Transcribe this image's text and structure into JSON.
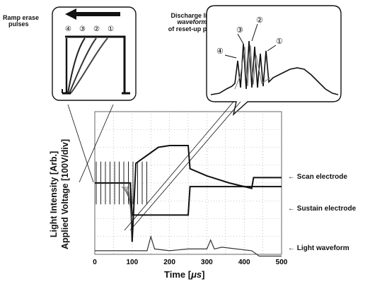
{
  "figure": {
    "ramp_label_line1": "Ramp erase",
    "ramp_label_line2": "pulses",
    "discharge_line1": "Discharge light",
    "discharge_line2": "waveforms",
    "discharge_line3": "of reset-up pulse",
    "ylabel_line1": "Light Intensity [Arb.]",
    "ylabel_line2": "Applied Voltage [100V/div]",
    "xlabel": "Time [",
    "xlabel_unit": "μs",
    "xlabel_close": "]",
    "trace_labels": {
      "scan": "Scan electrode",
      "sustain": "Sustain electrode",
      "light": "Light waveform"
    },
    "ramp_numbers": [
      "④",
      "③",
      "②",
      "①"
    ],
    "discharge_numbers": [
      "③",
      "②",
      "④",
      "①"
    ]
  },
  "chart_data": {
    "type": "line",
    "xlabel": "Time [μs]",
    "ylabel": "Applied Voltage [100V/div] / Light Intensity [Arb.]",
    "xlim": [
      0,
      500
    ],
    "x_ticks": [
      0,
      100,
      200,
      300,
      400,
      500
    ],
    "grid": true,
    "series": [
      {
        "name": "Scan electrode",
        "x": [
          0,
          95,
          100,
          110,
          170,
          200,
          250,
          255,
          300,
          360,
          420,
          425,
          500
        ],
        "y": [
          0,
          0,
          -3.3,
          1.1,
          2.0,
          2.1,
          2.1,
          0.8,
          0.4,
          0.0,
          -0.3,
          0.3,
          0.3
        ]
      },
      {
        "name": "Sustain electrode",
        "x": [
          0,
          95,
          100,
          250,
          255,
          500
        ],
        "y": [
          0,
          0,
          -1.8,
          -1.8,
          -0.2,
          -0.2
        ]
      },
      {
        "name": "Light waveform",
        "x": [
          0,
          140,
          150,
          160,
          200,
          250,
          300,
          310,
          320,
          340,
          420,
          440,
          500
        ],
        "y": [
          -3.8,
          -3.8,
          -3.0,
          -3.7,
          -3.8,
          -3.7,
          -3.7,
          -3.2,
          -3.7,
          -3.6,
          -3.8,
          -4.1,
          -4.1
        ]
      }
    ]
  }
}
